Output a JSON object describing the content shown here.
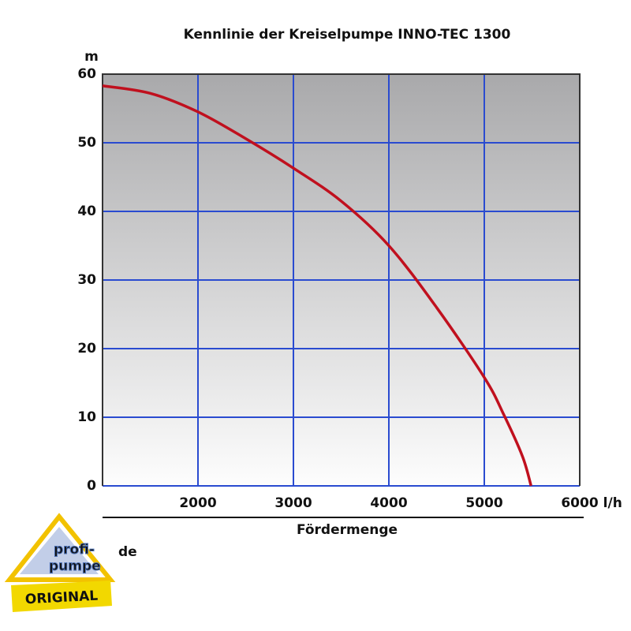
{
  "chart_data": {
    "type": "line",
    "title": "Kennlinie der Kreiselpumpe INNO-TEC 1300",
    "x_label": "Fördermenge",
    "x_unit": "l/h",
    "y_label": "m",
    "x": [
      1000,
      1500,
      2000,
      2500,
      3000,
      3500,
      4000,
      4500,
      5000,
      5200,
      5400,
      5490
    ],
    "series": [
      {
        "color": "#c0101e",
        "values": [
          58.3,
          57.2,
          54.5,
          50.6,
          46.3,
          41.5,
          35,
          26,
          15.8,
          10.5,
          4.3,
          0
        ]
      }
    ],
    "xlim": [
      1000,
      6000
    ],
    "xticks": [
      2000,
      3000,
      4000,
      5000,
      6000
    ],
    "ylim": [
      0,
      60
    ],
    "yticks": [
      0,
      10,
      20,
      30,
      40,
      50,
      60
    ],
    "grid": true,
    "grid_color": "#2a4bd0"
  },
  "logo": {
    "line1": "profi-",
    "line2": "pumpe",
    "tld": "de",
    "badge": "ORIGINAL"
  }
}
